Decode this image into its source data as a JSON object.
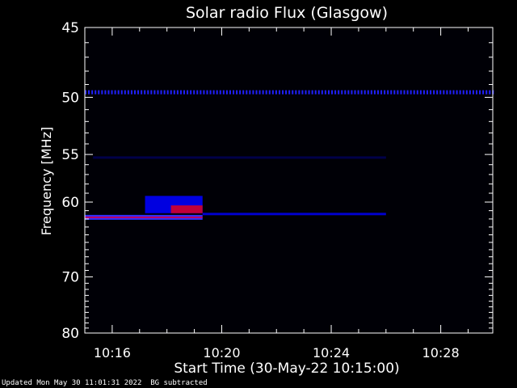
{
  "chart_data": {
    "type": "heatmap",
    "title": "Solar radio Flux (Glasgow)",
    "xlabel": "Start Time (30-May-22 10:15:00)",
    "ylabel": "Frequency [MHz]",
    "x_ticks": [
      "10:16",
      "10:20",
      "10:24",
      "10:28"
    ],
    "x_tick_values_min": [
      1,
      5,
      9,
      13
    ],
    "x_range_min": [
      0,
      14.9
    ],
    "y_ticks": [
      45,
      50,
      55,
      60,
      70,
      80
    ],
    "y_range_mhz": [
      45,
      80
    ],
    "y_scale": "reciprocal",
    "colormap": [
      "#000000",
      "#00003a",
      "#0000ff",
      "#ff0000"
    ],
    "features": [
      {
        "kind": "interference_line",
        "freq_mhz": 49.6,
        "t_start_min": 0,
        "t_end_min": 14.9,
        "level": "medium"
      },
      {
        "kind": "faint_line",
        "freq_mhz": 55.3,
        "t_start_min": 0.3,
        "t_end_min": 11,
        "level": "low"
      },
      {
        "kind": "strong_line",
        "freq_mhz": 61.8,
        "t_start_min": 0,
        "t_end_min": 4.3,
        "level": "high"
      },
      {
        "kind": "weak_line",
        "freq_mhz": 61.4,
        "t_start_min": 4.3,
        "t_end_min": 11,
        "level": "medium"
      },
      {
        "kind": "burst",
        "freq_start_mhz": 59.3,
        "freq_end_mhz": 61.3,
        "t_start_min": 2.2,
        "t_end_min": 4.3,
        "level": "high"
      }
    ]
  },
  "footer": {
    "updated": "Updated Mon May 30 11:01:31 2022",
    "note": "BG subtracted"
  }
}
